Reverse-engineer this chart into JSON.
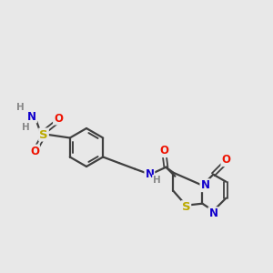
{
  "bg_color": "#e8e8e8",
  "bond_color": "#404040",
  "atom_colors": {
    "O": "#ee1100",
    "N": "#1100cc",
    "S": "#bbaa00",
    "H": "#888888",
    "C": "#404040"
  },
  "font_size": 8.5,
  "fig_size": [
    3.0,
    3.0
  ],
  "dpi": 100
}
